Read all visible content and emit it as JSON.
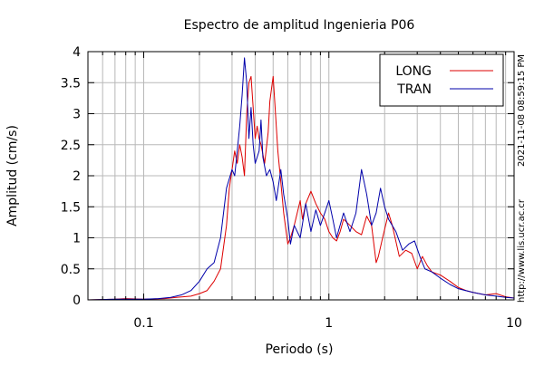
{
  "chart_data": {
    "type": "line",
    "title": "Espectro de amplitud Ingenieria P06",
    "xlabel": "Periodo (s)",
    "ylabel": "Amplitud (cm/s)",
    "x_scale": "log",
    "xlim": [
      0.05,
      10
    ],
    "ylim": [
      0,
      4
    ],
    "grid": true,
    "legend_position": "top-right",
    "x_ticks": [
      {
        "value": 0.1,
        "label": "0.1"
      },
      {
        "value": 1,
        "label": "1"
      },
      {
        "value": 10,
        "label": "10"
      }
    ],
    "y_ticks": [
      {
        "value": 0,
        "label": "0"
      },
      {
        "value": 0.5,
        "label": "0.5"
      },
      {
        "value": 1,
        "label": "1"
      },
      {
        "value": 1.5,
        "label": "1.5"
      },
      {
        "value": 2,
        "label": "2"
      },
      {
        "value": 2.5,
        "label": "2.5"
      },
      {
        "value": 3,
        "label": "3"
      },
      {
        "value": 3.5,
        "label": "3.5"
      },
      {
        "value": 4,
        "label": "4"
      }
    ],
    "series": [
      {
        "name": "LONG",
        "color": "#dd0000",
        "points": [
          [
            0.05,
            0.0
          ],
          [
            0.07,
            0.01
          ],
          [
            0.08,
            0.02
          ],
          [
            0.1,
            0.01
          ],
          [
            0.13,
            0.02
          ],
          [
            0.15,
            0.04
          ],
          [
            0.18,
            0.06
          ],
          [
            0.2,
            0.1
          ],
          [
            0.22,
            0.15
          ],
          [
            0.24,
            0.3
          ],
          [
            0.26,
            0.5
          ],
          [
            0.28,
            1.2
          ],
          [
            0.29,
            1.8
          ],
          [
            0.3,
            2.1
          ],
          [
            0.31,
            2.4
          ],
          [
            0.32,
            2.2
          ],
          [
            0.33,
            2.5
          ],
          [
            0.34,
            2.3
          ],
          [
            0.35,
            2.0
          ],
          [
            0.36,
            3.0
          ],
          [
            0.37,
            3.5
          ],
          [
            0.38,
            3.6
          ],
          [
            0.39,
            3.1
          ],
          [
            0.4,
            2.6
          ],
          [
            0.41,
            2.8
          ],
          [
            0.42,
            2.6
          ],
          [
            0.43,
            2.5
          ],
          [
            0.45,
            2.2
          ],
          [
            0.47,
            2.7
          ],
          [
            0.48,
            3.2
          ],
          [
            0.5,
            3.6
          ],
          [
            0.51,
            3.2
          ],
          [
            0.53,
            2.4
          ],
          [
            0.55,
            1.9
          ],
          [
            0.57,
            1.4
          ],
          [
            0.6,
            0.9
          ],
          [
            0.62,
            1.0
          ],
          [
            0.65,
            1.2
          ],
          [
            0.7,
            1.6
          ],
          [
            0.72,
            1.3
          ],
          [
            0.75,
            1.55
          ],
          [
            0.8,
            1.75
          ],
          [
            0.85,
            1.55
          ],
          [
            0.9,
            1.4
          ],
          [
            0.95,
            1.3
          ],
          [
            1.0,
            1.1
          ],
          [
            1.05,
            1.0
          ],
          [
            1.1,
            0.95
          ],
          [
            1.15,
            1.1
          ],
          [
            1.2,
            1.3
          ],
          [
            1.3,
            1.2
          ],
          [
            1.4,
            1.1
          ],
          [
            1.5,
            1.05
          ],
          [
            1.6,
            1.35
          ],
          [
            1.7,
            1.2
          ],
          [
            1.8,
            0.6
          ],
          [
            1.85,
            0.7
          ],
          [
            1.95,
            1.0
          ],
          [
            2.1,
            1.4
          ],
          [
            2.2,
            1.2
          ],
          [
            2.4,
            0.7
          ],
          [
            2.6,
            0.8
          ],
          [
            2.8,
            0.75
          ],
          [
            3.0,
            0.5
          ],
          [
            3.2,
            0.7
          ],
          [
            3.4,
            0.55
          ],
          [
            3.6,
            0.45
          ],
          [
            4.0,
            0.4
          ],
          [
            4.5,
            0.3
          ],
          [
            5.0,
            0.2
          ],
          [
            5.5,
            0.15
          ],
          [
            6.0,
            0.12
          ],
          [
            7.0,
            0.08
          ],
          [
            8.0,
            0.1
          ],
          [
            9.0,
            0.05
          ],
          [
            10.0,
            0.03
          ]
        ]
      },
      {
        "name": "TRAN",
        "color": "#0000aa",
        "points": [
          [
            0.05,
            0.0
          ],
          [
            0.07,
            0.01
          ],
          [
            0.08,
            0.01
          ],
          [
            0.1,
            0.01
          ],
          [
            0.12,
            0.02
          ],
          [
            0.14,
            0.04
          ],
          [
            0.16,
            0.08
          ],
          [
            0.18,
            0.15
          ],
          [
            0.2,
            0.3
          ],
          [
            0.22,
            0.5
          ],
          [
            0.24,
            0.6
          ],
          [
            0.26,
            1.0
          ],
          [
            0.28,
            1.8
          ],
          [
            0.3,
            2.1
          ],
          [
            0.31,
            2.0
          ],
          [
            0.32,
            2.4
          ],
          [
            0.33,
            2.8
          ],
          [
            0.34,
            3.3
          ],
          [
            0.35,
            3.9
          ],
          [
            0.36,
            3.5
          ],
          [
            0.37,
            2.6
          ],
          [
            0.38,
            3.1
          ],
          [
            0.39,
            2.5
          ],
          [
            0.4,
            2.2
          ],
          [
            0.42,
            2.4
          ],
          [
            0.43,
            2.9
          ],
          [
            0.44,
            2.3
          ],
          [
            0.46,
            2.0
          ],
          [
            0.48,
            2.1
          ],
          [
            0.5,
            1.9
          ],
          [
            0.52,
            1.6
          ],
          [
            0.55,
            2.1
          ],
          [
            0.57,
            1.7
          ],
          [
            0.6,
            1.3
          ],
          [
            0.62,
            0.9
          ],
          [
            0.65,
            1.2
          ],
          [
            0.7,
            1.0
          ],
          [
            0.75,
            1.55
          ],
          [
            0.8,
            1.1
          ],
          [
            0.85,
            1.45
          ],
          [
            0.9,
            1.2
          ],
          [
            0.95,
            1.4
          ],
          [
            1.0,
            1.6
          ],
          [
            1.05,
            1.3
          ],
          [
            1.1,
            1.0
          ],
          [
            1.2,
            1.4
          ],
          [
            1.3,
            1.1
          ],
          [
            1.4,
            1.4
          ],
          [
            1.5,
            2.1
          ],
          [
            1.6,
            1.7
          ],
          [
            1.7,
            1.2
          ],
          [
            1.8,
            1.4
          ],
          [
            1.9,
            1.8
          ],
          [
            2.0,
            1.5
          ],
          [
            2.1,
            1.3
          ],
          [
            2.3,
            1.1
          ],
          [
            2.5,
            0.8
          ],
          [
            2.7,
            0.9
          ],
          [
            2.9,
            0.95
          ],
          [
            3.1,
            0.7
          ],
          [
            3.3,
            0.5
          ],
          [
            3.6,
            0.45
          ],
          [
            4.0,
            0.35
          ],
          [
            4.5,
            0.25
          ],
          [
            5.0,
            0.18
          ],
          [
            6.0,
            0.12
          ],
          [
            7.0,
            0.08
          ],
          [
            8.0,
            0.06
          ],
          [
            9.0,
            0.04
          ],
          [
            10.0,
            0.03
          ]
        ]
      }
    ]
  },
  "side_labels": {
    "timestamp": "2021-11-08 08:59:15 PM",
    "website": "http://www.lis.ucr.ac.cr"
  }
}
